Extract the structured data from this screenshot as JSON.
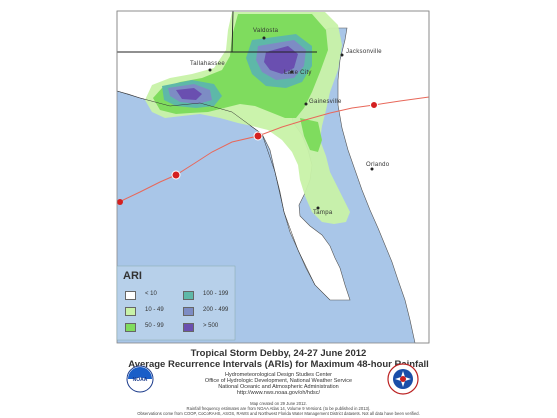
{
  "cities": [
    {
      "name": "Valdosta"
    },
    {
      "name": "Jacksonville"
    },
    {
      "name": "Tallahassee"
    },
    {
      "name": "Lake City"
    },
    {
      "name": "Gainesville"
    },
    {
      "name": "Orlando"
    },
    {
      "name": "Tampa"
    }
  ],
  "legend": {
    "title": "ARI",
    "items": [
      {
        "label": "< 10",
        "color": "#ffffff"
      },
      {
        "label": "100 - 199",
        "color": "#5eb8a8"
      },
      {
        "label": "10 - 49",
        "color": "#c8f2a8"
      },
      {
        "label": "200 - 499",
        "color": "#7d8cc4"
      },
      {
        "label": "50 - 99",
        "color": "#7fdc5e"
      },
      {
        "label": ">  500",
        "color": "#6a4fb0"
      }
    ]
  },
  "caption": {
    "title_line1": "Tropical Storm Debby, 24-27 June 2012",
    "title_line2": "Average Recurrence Intervals (ARIs) for Maximum 48-hour Rainfall",
    "org_lines": [
      "Hydrometeorological Design Studies Center",
      "Office of Hydrologic Development, National Weather Service",
      "National Oceanic and Atmospheric Administration",
      "http://www.nws.noaa.gov/oh/hdsc/"
    ],
    "notes": [
      "Map created on 29 June 2012.",
      "Rainfall frequency estimates are from NOAA Atlas 14, Volume 9 Version1 (to be published in 2013).",
      "Observations come from COOP, CoCoRAHS, ASOS, RAWS and Northwest Florida Water Management District datasets. Not all data have been verified."
    ]
  },
  "logos": {
    "noaa": "NOAA",
    "nws": "NATIONAL WEATHER SERVICE"
  },
  "colors": {
    "land": "#ffffff",
    "water": "#a9c6e8",
    "track": "#e8685a",
    "border": "#222222"
  }
}
